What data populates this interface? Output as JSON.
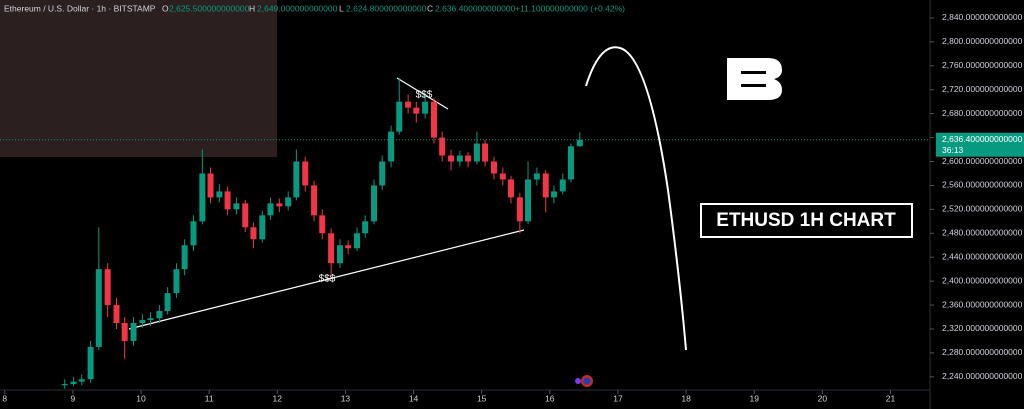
{
  "chart_data": {
    "type": "candlestick",
    "header": {
      "title": "Ethereum / U.S. Dollar · 1h · BITSTAMP",
      "o_label": "O",
      "o": "2,625.500000000000",
      "h_label": "H",
      "h": "2,649.000000000000",
      "l_label": "L",
      "l": "2,624.800000000000",
      "c_label": "C",
      "c": "2,636.400000000000",
      "change": "+11.100000000000 (+0.42%)"
    },
    "up_color": "#089981",
    "down_color": "#f23645",
    "x": [
      8.88,
      9.01,
      9.13,
      9.26,
      9.38,
      9.51,
      9.64,
      9.76,
      9.89,
      10.02,
      10.14,
      10.27,
      10.39,
      10.52,
      10.64,
      10.77,
      10.9,
      11.02,
      11.15,
      11.27,
      11.4,
      11.53,
      11.65,
      11.78,
      11.9,
      12.03,
      12.16,
      12.28,
      12.41,
      12.54,
      12.66,
      12.79,
      12.92,
      13.04,
      13.17,
      13.29,
      13.42,
      13.54,
      13.67,
      13.79,
      13.92,
      14.04,
      14.17,
      14.3,
      14.42,
      14.55,
      14.68,
      14.8,
      14.93,
      15.05,
      15.18,
      15.31,
      15.43,
      15.56,
      15.68,
      15.81,
      15.94,
      16.06,
      16.19,
      16.31,
      16.44
    ],
    "open": [
      2226,
      2228,
      2232,
      2236,
      2290,
      2420,
      2360,
      2330,
      2300,
      2330,
      2335,
      2338,
      2350,
      2380,
      2420,
      2460,
      2500,
      2580,
      2540,
      2550,
      2520,
      2530,
      2490,
      2470,
      2510,
      2530,
      2525,
      2540,
      2600,
      2560,
      2510,
      2480,
      2430,
      2460,
      2455,
      2480,
      2500,
      2560,
      2600,
      2650,
      2700,
      2690,
      2680,
      2700,
      2640,
      2610,
      2600,
      2610,
      2600,
      2630,
      2600,
      2580,
      2570,
      2540,
      2500,
      2570,
      2580,
      2540,
      2550,
      2570,
      2625.5
    ],
    "high": [
      2236,
      2240,
      2244,
      2300,
      2490,
      2430,
      2372,
      2340,
      2340,
      2345,
      2348,
      2360,
      2390,
      2430,
      2470,
      2510,
      2620,
      2590,
      2562,
      2558,
      2540,
      2536,
      2498,
      2518,
      2540,
      2538,
      2550,
      2620,
      2608,
      2568,
      2520,
      2488,
      2470,
      2468,
      2490,
      2510,
      2570,
      2610,
      2660,
      2740,
      2712,
      2700,
      2712,
      2706,
      2650,
      2620,
      2618,
      2616,
      2650,
      2636,
      2608,
      2590,
      2576,
      2548,
      2600,
      2590,
      2586,
      2560,
      2580,
      2630,
      2649
    ],
    "low": [
      2220,
      2224,
      2226,
      2230,
      2285,
      2340,
      2320,
      2270,
      2292,
      2322,
      2325,
      2330,
      2344,
      2372,
      2410,
      2450,
      2495,
      2530,
      2532,
      2510,
      2512,
      2482,
      2455,
      2464,
      2502,
      2515,
      2518,
      2535,
      2550,
      2500,
      2470,
      2410,
      2422,
      2445,
      2450,
      2472,
      2495,
      2552,
      2590,
      2645,
      2680,
      2665,
      2672,
      2630,
      2600,
      2585,
      2592,
      2590,
      2595,
      2592,
      2570,
      2560,
      2530,
      2480,
      2495,
      2560,
      2515,
      2530,
      2545,
      2565,
      2624.8
    ],
    "close": [
      2228,
      2232,
      2236,
      2290,
      2420,
      2360,
      2330,
      2300,
      2330,
      2335,
      2338,
      2350,
      2380,
      2420,
      2460,
      2500,
      2580,
      2540,
      2550,
      2520,
      2530,
      2490,
      2470,
      2510,
      2530,
      2525,
      2540,
      2600,
      2560,
      2510,
      2480,
      2430,
      2460,
      2455,
      2480,
      2500,
      2560,
      2600,
      2650,
      2700,
      2690,
      2680,
      2700,
      2640,
      2610,
      2600,
      2610,
      2600,
      2630,
      2600,
      2580,
      2570,
      2540,
      2500,
      2570,
      2580,
      2540,
      2550,
      2570,
      2625.5,
      2636.4
    ],
    "xlim": [
      7.93,
      21.58
    ],
    "xticks": [
      8,
      9,
      10,
      11,
      12,
      13,
      14,
      15,
      16,
      17,
      18,
      19,
      20,
      21
    ],
    "ylim": [
      2218,
      2870
    ],
    "yticks": [
      {
        "value": 2240,
        "label": "2,240.000000000000"
      },
      {
        "value": 2280,
        "label": "2,280.000000000000"
      },
      {
        "value": 2320,
        "label": "2,320.000000000000"
      },
      {
        "value": 2360,
        "label": "2,360.000000000000"
      },
      {
        "value": 2400,
        "label": "2,400.000000000000"
      },
      {
        "value": 2440,
        "label": "2,440.000000000000"
      },
      {
        "value": 2480,
        "label": "2,480.000000000000"
      },
      {
        "value": 2520,
        "label": "2,520.000000000000"
      },
      {
        "value": 2560,
        "label": "2,560.000000000000"
      },
      {
        "value": 2600,
        "label": "2,600.000000000000"
      },
      {
        "value": 2640,
        "label": "2,640.000000000000"
      },
      {
        "value": 2680,
        "label": "2,680.000000000000"
      },
      {
        "value": 2720,
        "label": "2,720.000000000000"
      },
      {
        "value": 2760,
        "label": "2,760.000000000000"
      },
      {
        "value": 2800,
        "label": "2,800.000000000000"
      },
      {
        "value": 2840,
        "label": "2,840.000000000000"
      }
    ],
    "last_price": {
      "value": 2636.4,
      "label": "2,636.400000000000"
    },
    "countdown": "36:13",
    "annotations": {
      "support": "$$$",
      "resistance": "$$$",
      "badge": "ETHUSD 1H CHART"
    }
  }
}
